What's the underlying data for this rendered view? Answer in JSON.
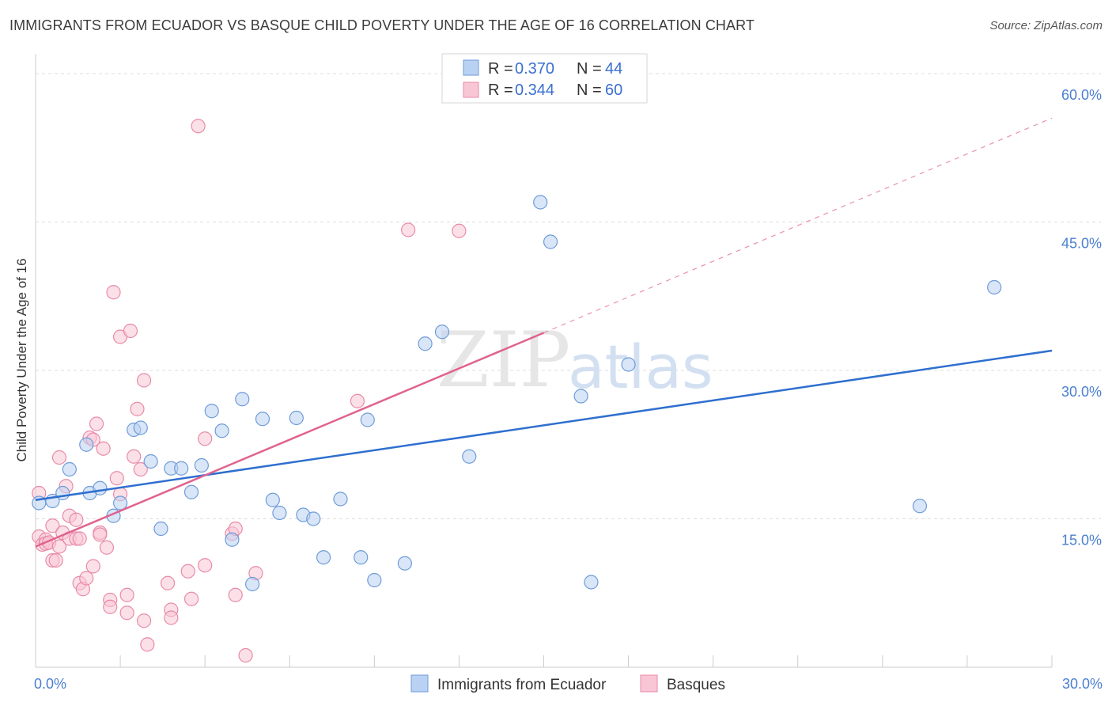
{
  "title": "IMMIGRANTS FROM ECUADOR VS BASQUE CHILD POVERTY UNDER THE AGE OF 16 CORRELATION CHART",
  "source": "Source: ZipAtlas.com",
  "watermark": {
    "zip": "ZIP",
    "atlas": "atlas"
  },
  "legend": {
    "series1": {
      "r_label": "R = ",
      "r_value": "0.370",
      "n_label": "N = ",
      "n_value": "44"
    },
    "series2": {
      "r_label": "R = ",
      "r_value": "0.344",
      "n_label": "N = ",
      "n_value": "60"
    }
  },
  "colors": {
    "blue_fill": "#b9d2f3",
    "blue_stroke": "#6d9bd8",
    "blue_line": "#2f6fcf",
    "pink_fill": "#f9c6d6",
    "pink_stroke": "#e88aa8",
    "pink_line": "#e0628f",
    "grid": "#dddddd",
    "axis_text": "#4a7fd0"
  },
  "chart_data": {
    "type": "scatter",
    "xlabel": "",
    "ylabel": "Child Poverty Under the Age of 16",
    "xlim": [
      0,
      30
    ],
    "ylim": [
      0,
      62
    ],
    "x_tick_labels": [
      "0.0%",
      "30.0%"
    ],
    "y_ticks": [
      15,
      30,
      45,
      60
    ],
    "y_tick_labels": [
      "15.0%",
      "30.0%",
      "45.0%",
      "60.0%"
    ],
    "grid": true,
    "legend_position": "top-center",
    "series": [
      {
        "name": "Immigrants from Ecuador",
        "color": "#b9d2f3",
        "points": [
          [
            0.1,
            16.6
          ],
          [
            0.5,
            16.8
          ],
          [
            0.8,
            17.6
          ],
          [
            1.0,
            20.0
          ],
          [
            1.5,
            22.5
          ],
          [
            1.6,
            17.6
          ],
          [
            1.9,
            18.1
          ],
          [
            2.3,
            15.3
          ],
          [
            2.5,
            16.6
          ],
          [
            2.9,
            24.0
          ],
          [
            3.1,
            24.2
          ],
          [
            3.4,
            20.8
          ],
          [
            3.7,
            14.0
          ],
          [
            4.0,
            20.1
          ],
          [
            4.3,
            20.1
          ],
          [
            4.6,
            17.7
          ],
          [
            4.9,
            20.4
          ],
          [
            5.2,
            25.9
          ],
          [
            5.5,
            23.9
          ],
          [
            5.8,
            12.9
          ],
          [
            6.1,
            27.1
          ],
          [
            6.4,
            8.4
          ],
          [
            6.7,
            25.1
          ],
          [
            7.0,
            16.9
          ],
          [
            7.2,
            15.6
          ],
          [
            7.7,
            25.2
          ],
          [
            7.9,
            15.4
          ],
          [
            8.2,
            15.0
          ],
          [
            8.5,
            11.1
          ],
          [
            9.0,
            17.0
          ],
          [
            9.6,
            11.1
          ],
          [
            9.8,
            25.0
          ],
          [
            10.0,
            8.8
          ],
          [
            10.9,
            10.5
          ],
          [
            11.5,
            32.7
          ],
          [
            12.0,
            33.9
          ],
          [
            12.8,
            21.3
          ],
          [
            14.9,
            47.0
          ],
          [
            15.2,
            43.0
          ],
          [
            16.1,
            27.4
          ],
          [
            16.4,
            8.6
          ],
          [
            17.5,
            30.6
          ],
          [
            26.1,
            16.3
          ],
          [
            28.3,
            38.4
          ]
        ]
      },
      {
        "name": "Basques",
        "color": "#f9c6d6",
        "points": [
          [
            0.1,
            17.6
          ],
          [
            0.1,
            13.2
          ],
          [
            0.2,
            12.4
          ],
          [
            0.3,
            12.9
          ],
          [
            0.3,
            12.5
          ],
          [
            0.4,
            12.6
          ],
          [
            0.5,
            10.8
          ],
          [
            0.5,
            14.3
          ],
          [
            0.6,
            10.8
          ],
          [
            0.7,
            12.2
          ],
          [
            0.7,
            21.2
          ],
          [
            0.8,
            13.6
          ],
          [
            0.9,
            18.3
          ],
          [
            1.0,
            13.0
          ],
          [
            1.0,
            15.3
          ],
          [
            1.2,
            13.0
          ],
          [
            1.2,
            14.9
          ],
          [
            1.3,
            13.0
          ],
          [
            1.3,
            8.5
          ],
          [
            1.4,
            7.9
          ],
          [
            1.5,
            9.0
          ],
          [
            1.6,
            23.2
          ],
          [
            1.7,
            23.0
          ],
          [
            1.7,
            10.2
          ],
          [
            1.8,
            24.6
          ],
          [
            1.9,
            13.6
          ],
          [
            1.9,
            13.4
          ],
          [
            2.0,
            22.1
          ],
          [
            2.1,
            12.1
          ],
          [
            2.2,
            6.8
          ],
          [
            2.2,
            6.1
          ],
          [
            2.3,
            37.9
          ],
          [
            2.4,
            19.1
          ],
          [
            2.5,
            33.4
          ],
          [
            2.5,
            17.5
          ],
          [
            2.7,
            7.3
          ],
          [
            2.7,
            5.5
          ],
          [
            2.8,
            34.0
          ],
          [
            2.9,
            21.3
          ],
          [
            3.0,
            26.1
          ],
          [
            3.1,
            20.0
          ],
          [
            3.2,
            29.0
          ],
          [
            3.2,
            4.7
          ],
          [
            3.3,
            2.3
          ],
          [
            3.9,
            8.5
          ],
          [
            4.0,
            5.8
          ],
          [
            4.0,
            5.0
          ],
          [
            4.5,
            9.7
          ],
          [
            4.6,
            6.9
          ],
          [
            4.8,
            54.7
          ],
          [
            5.0,
            23.1
          ],
          [
            5.0,
            10.3
          ],
          [
            5.8,
            13.5
          ],
          [
            5.9,
            14.0
          ],
          [
            5.9,
            7.3
          ],
          [
            6.2,
            1.2
          ],
          [
            6.5,
            9.5
          ],
          [
            9.5,
            26.9
          ],
          [
            11.0,
            44.2
          ],
          [
            12.5,
            44.1
          ]
        ]
      }
    ],
    "trend_lines": [
      {
        "series": "Immigrants from Ecuador",
        "from": [
          0,
          16.9
        ],
        "to": [
          30,
          32.0
        ],
        "dashed_extension": false
      },
      {
        "series": "Basques",
        "from": [
          0,
          12.2
        ],
        "to": [
          15,
          33.8
        ],
        "dashed_to": [
          30,
          55.5
        ]
      }
    ]
  }
}
